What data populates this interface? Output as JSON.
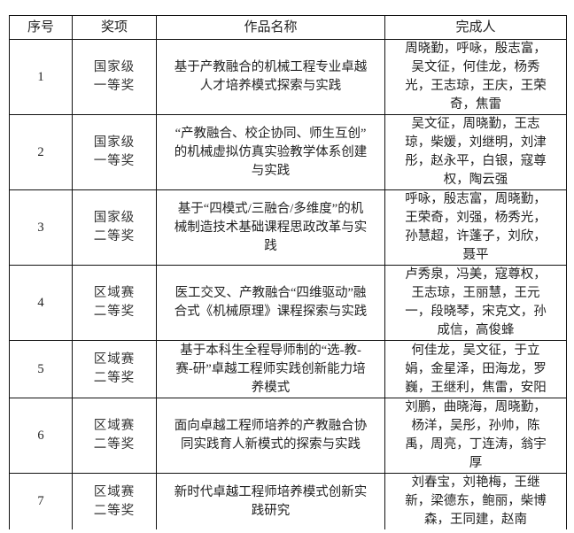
{
  "headers": [
    "序号",
    "奖项",
    "作品名称",
    "完成人"
  ],
  "rows": [
    {
      "no": "1",
      "award": [
        "国家级",
        "一等奖"
      ],
      "title": [
        "基于产教融合的机械工程专业卓越",
        "人才培养模式探索与实践"
      ],
      "members": [
        "周晓勤，呼咏，殷志富，",
        "吴文征，何佳龙，杨秀",
        "光，王志琼，王庆，王荣",
        "奇，焦雷"
      ]
    },
    {
      "no": "2",
      "award": [
        "国家级",
        "一等奖"
      ],
      "title": [
        "“产教融合、校企协同、师生互创”",
        "的机械虚拟仿真实验教学体系创建",
        "与实践"
      ],
      "members": [
        "吴文征，周晓勤，王志",
        "琼，柴媛，刘继明，刘津",
        "彤，赵永平，白银，寇尊",
        "权，陶云强"
      ]
    },
    {
      "no": "3",
      "award": [
        "国家级",
        "二等奖"
      ],
      "title": [
        "基于“四模式/三融合/多维度”的机",
        "械制造技术基础课程思政改革与实",
        "践"
      ],
      "members": [
        "呼咏，殷志富，周晓勤，",
        "王荣奇，刘强，杨秀光，",
        "孙慧超，许蓬子，刘欣，",
        "聂平"
      ]
    },
    {
      "no": "4",
      "award": [
        "区域赛",
        "二等奖"
      ],
      "title": [
        "医工交叉、产教融合“四维驱动”融",
        "合式《机械原理》课程探索与实践"
      ],
      "members": [
        "卢秀泉，冯美，寇尊权，",
        "王志琼，王丽慧，王元",
        "一，段晓琴，宋克文，孙",
        "成信，高俊蜂"
      ]
    },
    {
      "no": "5",
      "award": [
        "区域赛",
        "二等奖"
      ],
      "title": [
        "基于本科生全程导师制的“选-教-",
        "赛-研”卓越工程师实践创新能力培",
        "养模式"
      ],
      "members": [
        "何佳龙，吴文征，于立",
        "娟，金星泽，田海龙，罗",
        "巍，王继利，焦雷，安阳"
      ]
    },
    {
      "no": "6",
      "award": [
        "区域赛",
        "二等奖"
      ],
      "title": [
        "面向卓越工程师培养的产教融合协",
        "同实践育人新模式的探索与实践"
      ],
      "members": [
        "刘鹏，曲晓海，周晓勤，",
        "杨洋，吴彤，孙帅，陈",
        "禹，周亮，丁连涛，翁宇",
        "厚"
      ]
    },
    {
      "no": "7",
      "award": [
        "区域赛",
        "二等奖"
      ],
      "title": [
        "新时代卓越工程师培养模式创新实",
        "践研究"
      ],
      "members": [
        "刘春宝，刘艳梅，王继",
        "新，梁德东，鲍丽，柴博",
        "森，王同建，赵南"
      ]
    }
  ]
}
